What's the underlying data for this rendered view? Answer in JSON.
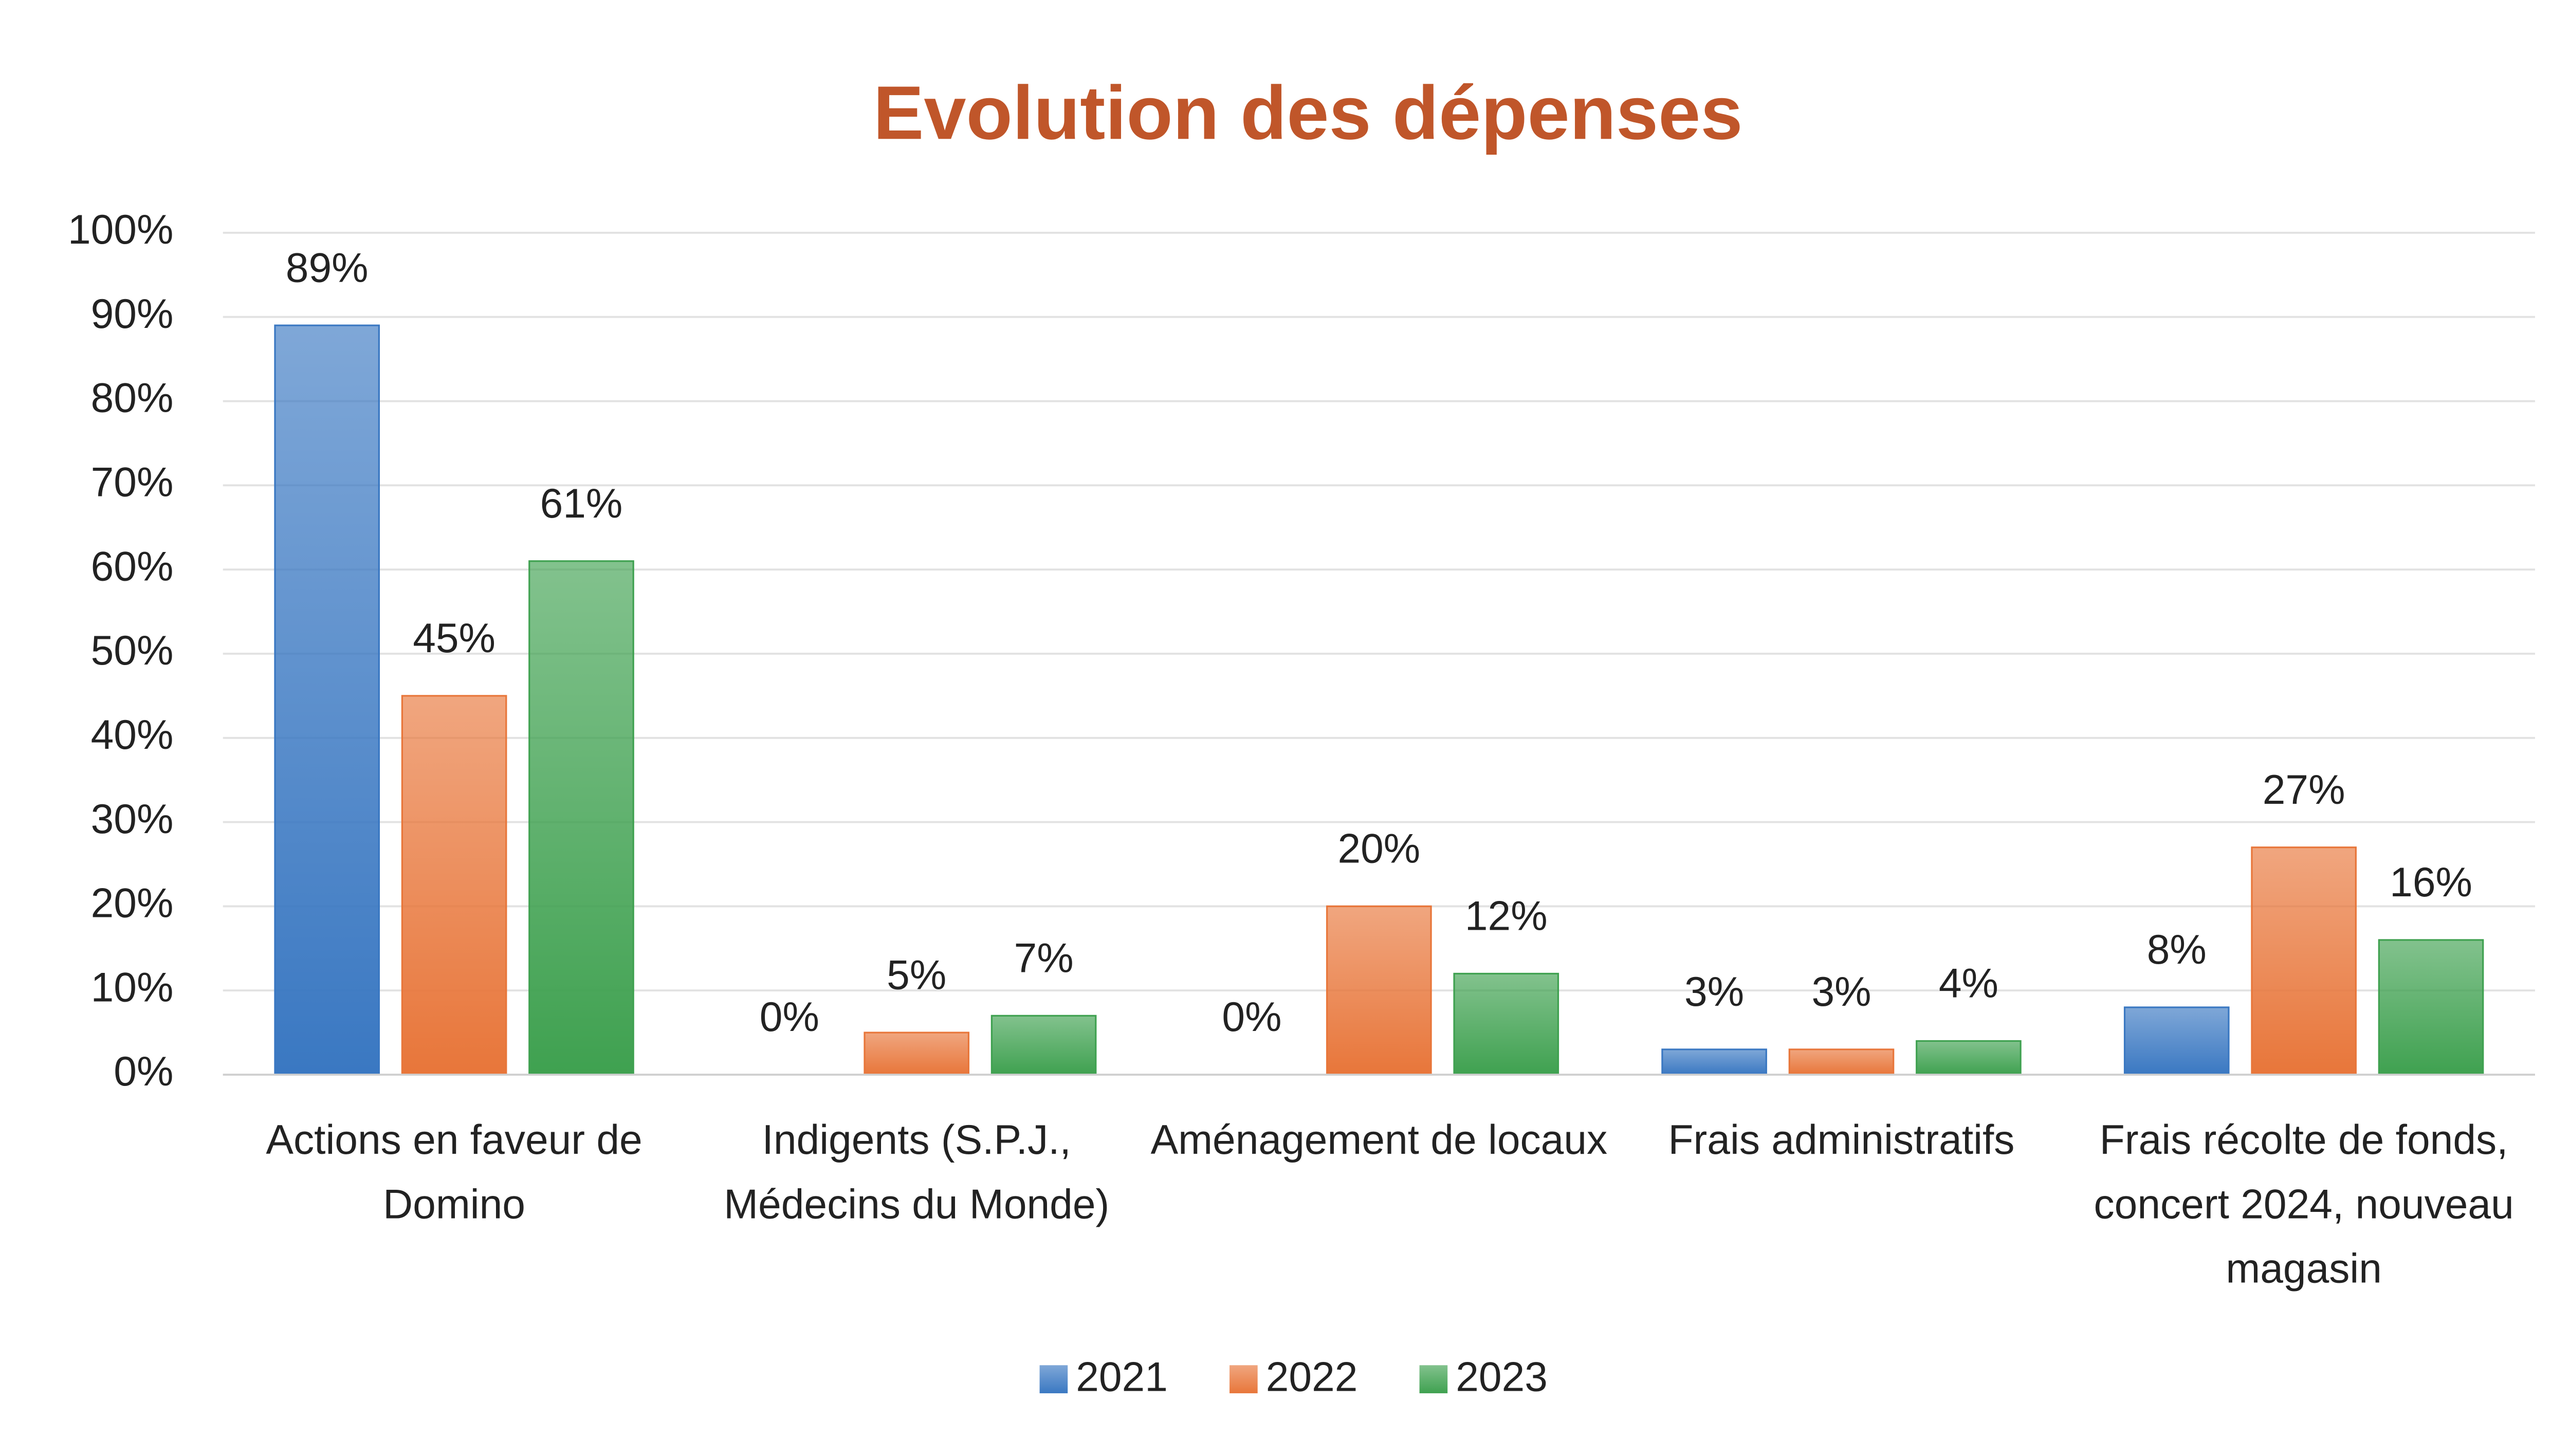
{
  "chart_data": {
    "type": "bar",
    "title": "Evolution des dépenses",
    "categories": [
      "Actions en faveur de Domino",
      "Indigents (S.P.J., Médecins du Monde)",
      "Aménagement de locaux",
      "Frais administratifs",
      "Frais récolte de fonds, concert 2024, nouveau magasin"
    ],
    "series": [
      {
        "name": "2021",
        "color": "#3a78c2",
        "values": [
          89,
          0,
          0,
          3,
          8
        ],
        "value_labels": [
          "89%",
          "0%",
          "0%",
          "3%",
          "8%"
        ]
      },
      {
        "name": "2022",
        "color": "#e8763a",
        "values": [
          45,
          5,
          20,
          3,
          27
        ],
        "value_labels": [
          "45%",
          "5%",
          "20%",
          "3%",
          "27%"
        ]
      },
      {
        "name": "2023",
        "color": "#3fa150",
        "values": [
          61,
          7,
          12,
          4,
          16
        ],
        "value_labels": [
          "61%",
          "7%",
          "12%",
          "4%",
          "16%"
        ]
      }
    ],
    "ylim": [
      0,
      100
    ],
    "yticks": [
      {
        "value": 0,
        "label": "0%"
      },
      {
        "value": 10,
        "label": "10%"
      },
      {
        "value": 20,
        "label": "20%"
      },
      {
        "value": 30,
        "label": "30%"
      },
      {
        "value": 40,
        "label": "40%"
      },
      {
        "value": 50,
        "label": "50%"
      },
      {
        "value": 60,
        "label": "60%"
      },
      {
        "value": 70,
        "label": "70%"
      },
      {
        "value": 80,
        "label": "80%"
      },
      {
        "value": 90,
        "label": "90%"
      },
      {
        "value": 100,
        "label": "100%"
      }
    ],
    "grid": true,
    "legend": "bottom"
  }
}
